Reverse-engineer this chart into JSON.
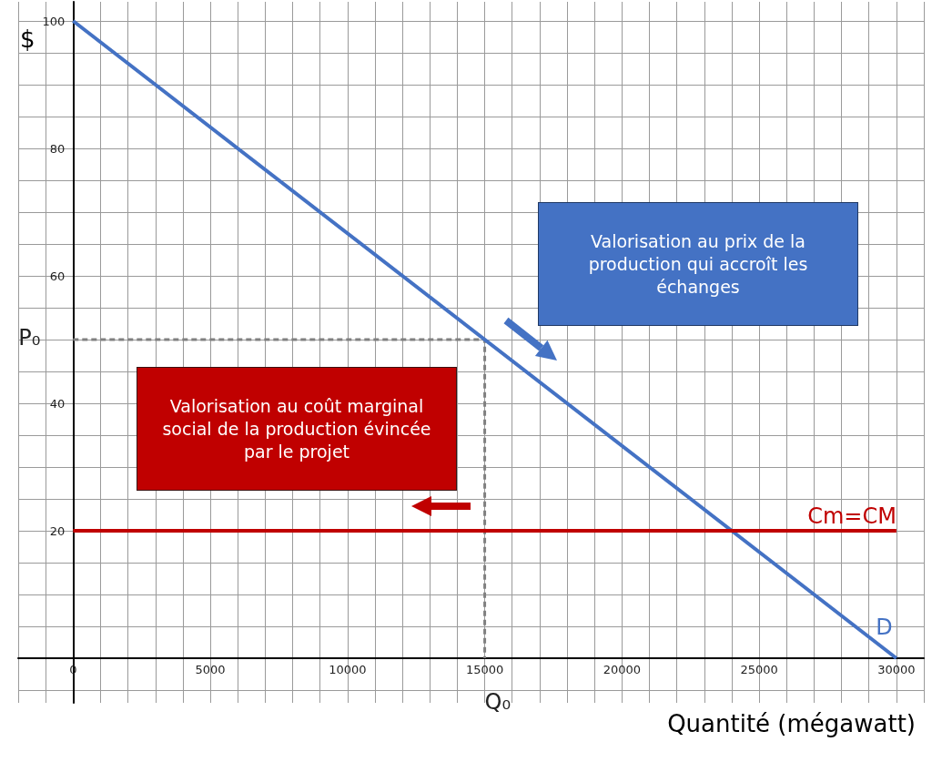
{
  "chart_data": {
    "type": "line",
    "xlabel": "Quantité (mégawatt)",
    "ylabel": "$",
    "xlim": [
      -2000,
      31000
    ],
    "ylim": [
      -7,
      103
    ],
    "xticks": [
      {
        "value": -2000,
        "label": null
      },
      {
        "value": -1000,
        "label": null
      },
      0,
      {
        "value": 1000,
        "label": null
      },
      {
        "value": 2000,
        "label": null
      },
      {
        "value": 3000,
        "label": null
      },
      {
        "value": 4000,
        "label": null
      },
      5000,
      {
        "value": 6000,
        "label": null
      },
      {
        "value": 7000,
        "label": null
      },
      {
        "value": 8000,
        "label": null
      },
      {
        "value": 9000,
        "label": null
      },
      10000,
      {
        "value": 11000,
        "label": null
      },
      {
        "value": 12000,
        "label": null
      },
      {
        "value": 13000,
        "label": null
      },
      {
        "value": 14000,
        "label": null
      },
      15000,
      {
        "value": 16000,
        "label": null
      },
      {
        "value": 17000,
        "label": null
      },
      {
        "value": 18000,
        "label": null
      },
      {
        "value": 19000,
        "label": null
      },
      20000,
      {
        "value": 21000,
        "label": null
      },
      {
        "value": 22000,
        "label": null
      },
      {
        "value": 23000,
        "label": null
      },
      {
        "value": 24000,
        "label": null
      },
      25000,
      {
        "value": 26000,
        "label": null
      },
      {
        "value": 27000,
        "label": null
      },
      {
        "value": 28000,
        "label": null
      },
      {
        "value": 29000,
        "label": null
      },
      30000,
      {
        "value": 31000,
        "label": null
      }
    ],
    "yticks": [
      {
        "value": -5,
        "label": null
      },
      {
        "value": 0,
        "label": null
      },
      {
        "value": 5,
        "label": null
      },
      {
        "value": 10,
        "label": null
      },
      {
        "value": 15,
        "label": null
      },
      20,
      {
        "value": 25,
        "label": null
      },
      {
        "value": 30,
        "label": null
      },
      {
        "value": 35,
        "label": null
      },
      40,
      {
        "value": 45,
        "label": null
      },
      {
        "value": 50,
        "label": null
      },
      {
        "value": 55,
        "label": null
      },
      60,
      {
        "value": 65,
        "label": null
      },
      {
        "value": 70,
        "label": null
      },
      {
        "value": 75,
        "label": null
      },
      80,
      {
        "value": 85,
        "label": null
      },
      {
        "value": 90,
        "label": null
      },
      {
        "value": 95,
        "label": null
      },
      100
    ],
    "grid": true,
    "marker": "none",
    "series": [
      {
        "name": "D",
        "color": "#4472c4",
        "x": [
          0,
          30000
        ],
        "values": [
          100,
          0
        ]
      },
      {
        "name": "Cm=CM",
        "color": "#c00000",
        "x": [
          0,
          30000
        ],
        "values": [
          20,
          20
        ]
      },
      {
        "color": "#808080",
        "line_style": "dashed",
        "x": [
          0,
          15000,
          15000
        ],
        "values": [
          50,
          50,
          0
        ]
      }
    ],
    "annotations": [
      {
        "text": "P₀",
        "x": 0,
        "y": 50
      },
      {
        "text": "Q₀",
        "x": 15000,
        "y": 0
      },
      "Valorisation au prix de la production qui accroît les échanges",
      "Valorisation au coût marginal social de la production évincée par le projet"
    ]
  }
}
